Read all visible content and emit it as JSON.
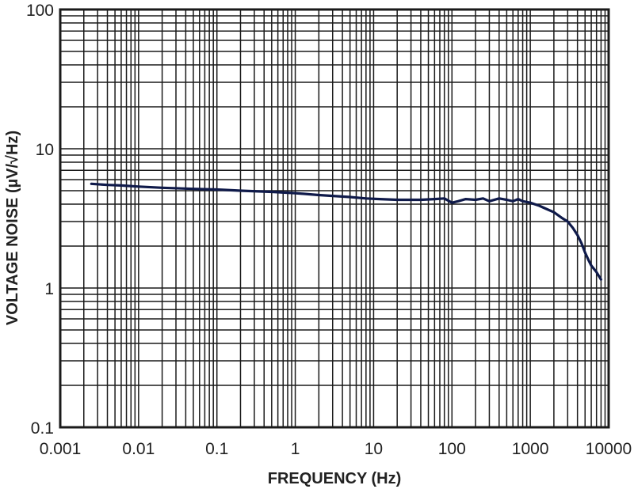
{
  "chart_data": {
    "type": "line",
    "xlabel": "FREQUENCY (Hz)",
    "ylabel": "VOLTAGE NOISE (µV/√Hz)",
    "xscale": "log",
    "yscale": "log",
    "xlim": [
      0.001,
      10000
    ],
    "ylim": [
      0.1,
      100
    ],
    "grid": true,
    "x_ticks": [
      "0.001",
      "0.01",
      "0.1",
      "1",
      "10",
      "100",
      "1000",
      "10000"
    ],
    "y_ticks": [
      "0.1",
      "1",
      "10",
      "100"
    ],
    "series_color": "#0f1a4a",
    "series": [
      {
        "x": [
          0.0025,
          0.004,
          0.006,
          0.01,
          0.02,
          0.05,
          0.1,
          0.2,
          0.5,
          1,
          2,
          5,
          8,
          12,
          20,
          40,
          60,
          80,
          100,
          120,
          150,
          200,
          250,
          300,
          400,
          500,
          600,
          700,
          800,
          1000,
          1300,
          1600,
          2000,
          2500,
          3000,
          3500,
          4000,
          4500,
          5000,
          5500,
          6000,
          7000,
          8000
        ],
        "y": [
          5.6,
          5.5,
          5.45,
          5.35,
          5.25,
          5.15,
          5.1,
          5.0,
          4.9,
          4.8,
          4.65,
          4.5,
          4.4,
          4.35,
          4.3,
          4.3,
          4.35,
          4.4,
          4.1,
          4.2,
          4.35,
          4.3,
          4.4,
          4.2,
          4.4,
          4.3,
          4.2,
          4.35,
          4.2,
          4.1,
          3.9,
          3.7,
          3.5,
          3.2,
          3.0,
          2.7,
          2.4,
          2.1,
          1.8,
          1.6,
          1.45,
          1.3,
          1.15
        ]
      }
    ]
  }
}
